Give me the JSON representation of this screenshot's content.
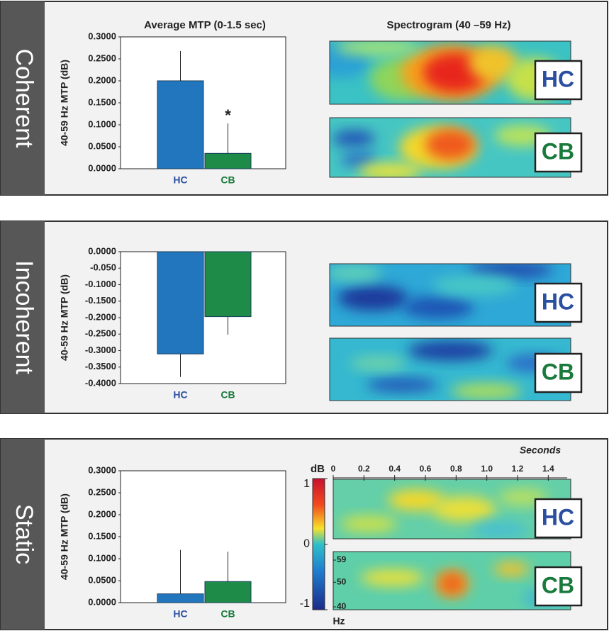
{
  "chart_data": [
    {
      "type": "bar",
      "panel": "Coherent",
      "title": "Average MTP (0-1.5 sec)",
      "y_label": "40-59 Hz MTP (dB)",
      "categories": [
        "HC",
        "CB"
      ],
      "values": [
        0.2,
        0.035
      ],
      "errors": [
        0.068,
        0.068
      ],
      "colors": [
        "#2176bd",
        "#1e8c48"
      ],
      "category_colors": [
        "#2b4fa0",
        "#1a7a3c"
      ],
      "annotation": "*",
      "ylim": [
        0,
        0.3
      ],
      "yticks": [
        {
          "value": 0,
          "label": "0.0000"
        },
        {
          "value": 0.05,
          "label": "0.0500"
        },
        {
          "value": 0.1,
          "label": "0.1000"
        },
        {
          "value": 0.15,
          "label": "0.1500"
        },
        {
          "value": 0.2,
          "label": "0.2000"
        },
        {
          "value": 0.25,
          "label": "0.2500"
        },
        {
          "value": 0.3,
          "label": "0.3000"
        }
      ]
    },
    {
      "type": "bar",
      "panel": "Incoherent",
      "y_label": "40-59 Hz MTP (dB)",
      "categories": [
        "HC",
        "CB"
      ],
      "values": [
        -0.31,
        -0.197
      ],
      "errors": [
        0.07,
        0.055
      ],
      "colors": [
        "#2176bd",
        "#1e8c48"
      ],
      "category_colors": [
        "#2b4fa0",
        "#1a7a3c"
      ],
      "ylim": [
        -0.4,
        0
      ],
      "yticks": [
        {
          "value": 0,
          "label": "0.0000"
        },
        {
          "value": -0.05,
          "label": "-0.050"
        },
        {
          "value": -0.1,
          "label": "-0.1000"
        },
        {
          "value": -0.15,
          "label": "-0.1500"
        },
        {
          "value": -0.2,
          "label": "-0.2000"
        },
        {
          "value": -0.25,
          "label": "-0.2500"
        },
        {
          "value": -0.3,
          "label": "-0.3000"
        },
        {
          "value": -0.35,
          "label": "-0.3500"
        },
        {
          "value": -0.4,
          "label": "-0.4000"
        }
      ]
    },
    {
      "type": "bar",
      "panel": "Static",
      "y_label": "40-59 Hz MTP (dB)",
      "categories": [
        "HC",
        "CB"
      ],
      "values": [
        0.02,
        0.048
      ],
      "errors": [
        0.1,
        0.068
      ],
      "colors": [
        "#2176bd",
        "#1e8c48"
      ],
      "category_colors": [
        "#2b4fa0",
        "#1a7a3c"
      ],
      "ylim": [
        0,
        0.3
      ],
      "yticks": [
        {
          "value": 0,
          "label": "0.0000"
        },
        {
          "value": 0.05,
          "label": "0.0500"
        },
        {
          "value": 0.1,
          "label": "0.1000"
        },
        {
          "value": 0.15,
          "label": "0.1500"
        },
        {
          "value": 0.2,
          "label": "0.2000"
        },
        {
          "value": 0.25,
          "label": "0.2500"
        },
        {
          "value": 0.3,
          "label": "0.3000"
        }
      ]
    }
  ],
  "spectrogram": {
    "title": "Spectrogram (40 –59 Hz)",
    "badges": [
      "HC",
      "CB"
    ],
    "x_label": "Seconds",
    "xlim": [
      0,
      1.5
    ],
    "xticks": [
      0,
      0.2,
      0.4,
      0.6,
      0.8,
      {
        "value": 1,
        "label": "1.0"
      },
      1.2,
      1.4
    ],
    "hz_label": "Hz",
    "hz_lim": [
      40,
      59
    ],
    "hz_ticks": [
      59,
      50,
      40
    ],
    "colorbar_label": "dB",
    "colorbar_lim": [
      -1,
      1
    ],
    "colorbar_ticks": [
      1,
      0,
      -1
    ]
  }
}
